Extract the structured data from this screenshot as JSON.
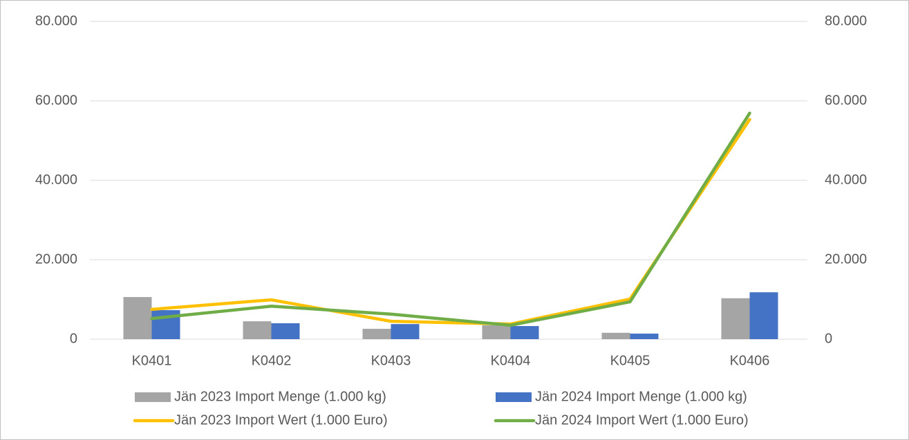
{
  "chart_data": {
    "type": "bar-line",
    "categories": [
      "K0401",
      "K0402",
      "K0403",
      "K0404",
      "K0405",
      "K0406"
    ],
    "series": [
      {
        "name": "Jän 2023 Import Menge (1.000 kg)",
        "type": "bar",
        "color": "#a5a5a5",
        "values": [
          10600,
          4500,
          2600,
          3500,
          1600,
          10300
        ]
      },
      {
        "name": "Jän 2024 Import Menge (1.000 kg)",
        "type": "bar",
        "color": "#4472c4",
        "values": [
          7300,
          4000,
          3800,
          3300,
          1400,
          11800
        ]
      },
      {
        "name": "Jän 2023 Import Wert (1.000 Euro)",
        "type": "line",
        "axis": "y2",
        "color": "#ffc000",
        "values": [
          7500,
          9900,
          4500,
          3800,
          10100,
          55300
        ]
      },
      {
        "name": "Jän 2024 Import Wert (1.000 Euro)",
        "type": "line",
        "axis": "y2",
        "color": "#70ad47",
        "values": [
          5200,
          8300,
          6300,
          3500,
          9400,
          56900
        ]
      }
    ],
    "ylim": [
      0,
      80000
    ],
    "yticks": [
      0,
      {
        "value": 20000,
        "label": "20.000"
      },
      {
        "value": 40000,
        "label": "40.000"
      },
      {
        "value": 60000,
        "label": "60.000"
      },
      {
        "value": 80000,
        "label": "80.000"
      }
    ],
    "y2lim": [
      0,
      80000
    ],
    "y2ticks": [
      0,
      {
        "value": 20000,
        "label": "20.000"
      },
      {
        "value": 40000,
        "label": "40.000"
      },
      {
        "value": 60000,
        "label": "60.000"
      },
      {
        "value": 80000,
        "label": "80.000"
      }
    ],
    "grid": true,
    "legend": "bottom"
  }
}
